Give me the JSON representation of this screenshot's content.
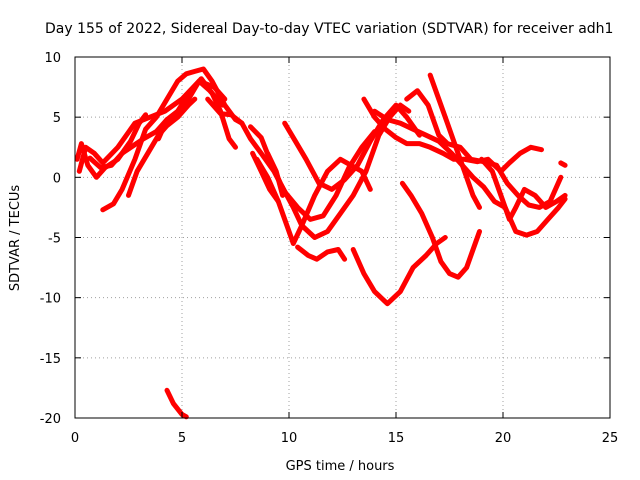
{
  "chart_data": {
    "type": "scatter",
    "title": "Day 155 of 2022, Sidereal Day-to-day VTEC variation (SDTVAR) for receiver adh1",
    "xlabel": "GPS time / hours",
    "ylabel": "SDTVAR / TECUs",
    "xlim": [
      0,
      25
    ],
    "ylim": [
      -20,
      10
    ],
    "xticks": [
      "0",
      "5",
      "10",
      "15",
      "20",
      "25"
    ],
    "yticks": [
      "10",
      "5",
      "0",
      "-5",
      "-10",
      "-15",
      "-20"
    ],
    "grid": true,
    "marker_color": "#ff0000",
    "series": [
      {
        "name": "track-1",
        "points": [
          [
            0.1,
            1.5
          ],
          [
            0.3,
            2.8
          ],
          [
            0.6,
            1.0
          ],
          [
            1.0,
            0.0
          ],
          [
            1.4,
            0.8
          ],
          [
            2.0,
            1.5
          ],
          [
            2.6,
            3.0
          ],
          [
            3.0,
            4.5
          ],
          [
            3.3,
            5.2
          ]
        ]
      },
      {
        "name": "track-2",
        "points": [
          [
            0.2,
            0.5
          ],
          [
            0.5,
            2.5
          ],
          [
            0.9,
            2.0
          ],
          [
            1.3,
            1.2
          ],
          [
            2.0,
            2.5
          ],
          [
            2.8,
            4.5
          ],
          [
            3.5,
            5.0
          ],
          [
            4.2,
            5.5
          ],
          [
            5.0,
            6.5
          ],
          [
            5.8,
            8.0
          ],
          [
            6.5,
            7.5
          ],
          [
            7.0,
            6.5
          ]
        ]
      },
      {
        "name": "track-3",
        "points": [
          [
            1.3,
            -2.7
          ],
          [
            1.8,
            -2.2
          ],
          [
            2.2,
            -1.0
          ],
          [
            2.8,
            1.5
          ],
          [
            3.3,
            4.0
          ],
          [
            3.8,
            5.0
          ],
          [
            4.3,
            6.5
          ],
          [
            4.8,
            8.0
          ],
          [
            5.2,
            8.6
          ],
          [
            5.6,
            8.8
          ],
          [
            6.0,
            9.0
          ],
          [
            6.4,
            8.0
          ],
          [
            7.0,
            6.0
          ],
          [
            7.5,
            4.8
          ],
          [
            7.8,
            4.5
          ]
        ]
      },
      {
        "name": "track-4",
        "points": [
          [
            2.5,
            -1.5
          ],
          [
            2.9,
            0.5
          ],
          [
            3.4,
            2.0
          ],
          [
            3.9,
            3.5
          ],
          [
            4.3,
            4.3
          ],
          [
            4.8,
            5.0
          ],
          [
            5.3,
            6.0
          ],
          [
            5.6,
            6.5
          ]
        ]
      },
      {
        "name": "track-5",
        "points": [
          [
            0.7,
            1.6
          ],
          [
            1.2,
            0.8
          ],
          [
            1.7,
            1.0
          ],
          [
            2.2,
            2.0
          ],
          [
            2.7,
            2.6
          ],
          [
            3.2,
            3.2
          ],
          [
            3.8,
            3.8
          ],
          [
            4.3,
            4.8
          ],
          [
            4.9,
            5.3
          ],
          [
            5.4,
            6.8
          ],
          [
            5.8,
            8.0
          ],
          [
            6.3,
            7.2
          ],
          [
            6.9,
            6.0
          ]
        ]
      },
      {
        "name": "track-6",
        "points": [
          [
            3.9,
            3.2
          ],
          [
            4.3,
            4.8
          ],
          [
            4.8,
            5.5
          ],
          [
            5.4,
            7.2
          ],
          [
            5.9,
            8.2
          ],
          [
            6.4,
            7.0
          ],
          [
            6.8,
            5.5
          ],
          [
            7.2,
            3.2
          ],
          [
            7.5,
            2.5
          ]
        ]
      },
      {
        "name": "track-7",
        "points": [
          [
            6.2,
            6.5
          ],
          [
            6.8,
            5.3
          ],
          [
            7.3,
            5.2
          ],
          [
            7.8,
            4.5
          ],
          [
            8.2,
            3.2
          ],
          [
            8.7,
            2.0
          ],
          [
            9.3,
            0.5
          ],
          [
            9.8,
            -1.2
          ],
          [
            10.4,
            -2.5
          ],
          [
            11.0,
            -3.5
          ],
          [
            11.6,
            -3.2
          ],
          [
            12.2,
            -1.5
          ],
          [
            12.8,
            0.8
          ],
          [
            13.4,
            2.5
          ],
          [
            14.0,
            3.8
          ]
        ]
      },
      {
        "name": "track-8",
        "points": [
          [
            8.2,
            4.2
          ],
          [
            8.7,
            3.3
          ],
          [
            9.1,
            1.5
          ],
          [
            9.6,
            -0.5
          ],
          [
            10.2,
            -2.5
          ],
          [
            10.6,
            -4.0
          ],
          [
            11.2,
            -5.0
          ],
          [
            11.8,
            -4.5
          ],
          [
            12.4,
            -3.0
          ],
          [
            13.0,
            -1.5
          ],
          [
            13.6,
            0.5
          ],
          [
            14.2,
            3.5
          ],
          [
            14.7,
            5.0
          ],
          [
            15.2,
            6.0
          ],
          [
            15.6,
            5.5
          ]
        ]
      },
      {
        "name": "track-9",
        "points": [
          [
            8.5,
            1.5
          ],
          [
            9.0,
            0.0
          ],
          [
            9.5,
            -2.0
          ],
          [
            9.9,
            -4.0
          ],
          [
            10.2,
            -5.5
          ],
          [
            10.6,
            -4.0
          ],
          [
            11.2,
            -1.5
          ],
          [
            11.8,
            0.5
          ],
          [
            12.4,
            1.5
          ],
          [
            12.9,
            1.0
          ],
          [
            13.4,
            0.5
          ],
          [
            13.8,
            -1.0
          ]
        ]
      },
      {
        "name": "track-10",
        "points": [
          [
            9.0,
            2.0
          ],
          [
            9.4,
            0.5
          ],
          [
            9.7,
            -1.5
          ]
        ]
      },
      {
        "name": "track-11",
        "points": [
          [
            10.4,
            -5.8
          ],
          [
            10.9,
            -6.5
          ],
          [
            11.3,
            -6.8
          ],
          [
            11.8,
            -6.2
          ],
          [
            12.3,
            -6.0
          ],
          [
            12.6,
            -6.8
          ]
        ]
      },
      {
        "name": "track-12",
        "points": [
          [
            9.8,
            4.5
          ],
          [
            10.3,
            3.0
          ],
          [
            10.8,
            1.5
          ],
          [
            11.4,
            -0.5
          ],
          [
            12.0,
            -1.0
          ],
          [
            12.6,
            -0.2
          ],
          [
            13.2,
            1.0
          ],
          [
            13.8,
            3.0
          ],
          [
            14.4,
            4.8
          ],
          [
            15.0,
            6.0
          ],
          [
            15.5,
            5.0
          ],
          [
            16.1,
            3.5
          ]
        ]
      },
      {
        "name": "track-13",
        "points": [
          [
            8.3,
            2.0
          ],
          [
            8.7,
            0.5
          ],
          [
            9.1,
            -1.0
          ],
          [
            9.5,
            -2.0
          ]
        ]
      },
      {
        "name": "track-14",
        "points": [
          [
            13.0,
            -6.0
          ],
          [
            13.5,
            -8.0
          ],
          [
            14.0,
            -9.5
          ],
          [
            14.6,
            -10.5
          ],
          [
            15.2,
            -9.5
          ],
          [
            15.8,
            -7.5
          ],
          [
            16.4,
            -6.5
          ],
          [
            16.9,
            -5.5
          ],
          [
            17.3,
            -5.0
          ]
        ]
      },
      {
        "name": "track-15",
        "points": [
          [
            15.3,
            -0.5
          ],
          [
            15.7,
            -1.5
          ],
          [
            16.2,
            -3.0
          ],
          [
            16.7,
            -5.0
          ],
          [
            17.1,
            -7.0
          ],
          [
            17.5,
            -8.0
          ],
          [
            17.9,
            -8.3
          ],
          [
            18.3,
            -7.5
          ],
          [
            18.7,
            -5.5
          ],
          [
            18.9,
            -4.5
          ]
        ]
      },
      {
        "name": "track-16",
        "points": [
          [
            13.5,
            6.5
          ],
          [
            14.0,
            5.0
          ],
          [
            14.5,
            4.0
          ],
          [
            15.0,
            3.3
          ],
          [
            15.5,
            2.8
          ],
          [
            16.1,
            2.8
          ],
          [
            16.6,
            2.5
          ],
          [
            17.2,
            2.0
          ],
          [
            17.7,
            1.5
          ],
          [
            18.2,
            1.5
          ],
          [
            18.8,
            1.3
          ],
          [
            19.3,
            1.5
          ],
          [
            19.9,
            0.5
          ],
          [
            20.3,
            1.2
          ],
          [
            20.8,
            2.0
          ],
          [
            21.3,
            2.5
          ],
          [
            21.8,
            2.3
          ]
        ]
      },
      {
        "name": "track-17",
        "points": [
          [
            14.0,
            5.5
          ],
          [
            14.6,
            4.8
          ],
          [
            15.2,
            4.5
          ],
          [
            15.8,
            4.0
          ],
          [
            16.4,
            3.5
          ],
          [
            17.0,
            3.0
          ],
          [
            17.6,
            2.0
          ],
          [
            18.1,
            1.0
          ],
          [
            18.6,
            0.0
          ],
          [
            19.1,
            -0.8
          ],
          [
            19.6,
            -2.0
          ],
          [
            20.1,
            -2.5
          ],
          [
            20.6,
            -4.5
          ],
          [
            21.1,
            -4.8
          ],
          [
            21.6,
            -4.5
          ],
          [
            22.1,
            -3.5
          ],
          [
            22.6,
            -2.5
          ],
          [
            22.9,
            -1.8
          ]
        ]
      },
      {
        "name": "track-18",
        "points": [
          [
            16.6,
            8.5
          ],
          [
            17.0,
            6.5
          ],
          [
            17.4,
            4.5
          ],
          [
            17.8,
            2.5
          ],
          [
            18.2,
            0.5
          ],
          [
            18.6,
            -1.5
          ],
          [
            18.9,
            -2.5
          ]
        ]
      },
      {
        "name": "track-19",
        "points": [
          [
            15.5,
            6.5
          ],
          [
            16.0,
            7.2
          ],
          [
            16.5,
            6.0
          ],
          [
            17.0,
            3.5
          ],
          [
            17.4,
            2.8
          ],
          [
            18.0,
            2.5
          ],
          [
            18.5,
            1.5
          ],
          [
            19.1,
            1.3
          ],
          [
            19.7,
            1.0
          ],
          [
            20.2,
            -0.5
          ],
          [
            20.7,
            -1.5
          ],
          [
            21.2,
            -2.3
          ],
          [
            21.7,
            -2.5
          ],
          [
            22.2,
            -2.0
          ],
          [
            22.7,
            0.0
          ]
        ]
      },
      {
        "name": "track-20",
        "points": [
          [
            19.0,
            1.5
          ],
          [
            19.5,
            0.5
          ],
          [
            19.9,
            -1.5
          ],
          [
            20.3,
            -3.5
          ],
          [
            20.6,
            -2.5
          ],
          [
            21.0,
            -1.0
          ],
          [
            21.5,
            -1.5
          ],
          [
            22.0,
            -2.5
          ],
          [
            22.5,
            -2.0
          ],
          [
            22.9,
            -1.5
          ]
        ]
      },
      {
        "name": "track-21",
        "points": [
          [
            22.7,
            1.2
          ],
          [
            22.9,
            1.0
          ]
        ]
      },
      {
        "name": "track-22",
        "points": [
          [
            4.3,
            -17.7
          ],
          [
            4.6,
            -18.8
          ],
          [
            5.0,
            -19.7
          ],
          [
            5.2,
            -19.9
          ]
        ]
      }
    ]
  }
}
